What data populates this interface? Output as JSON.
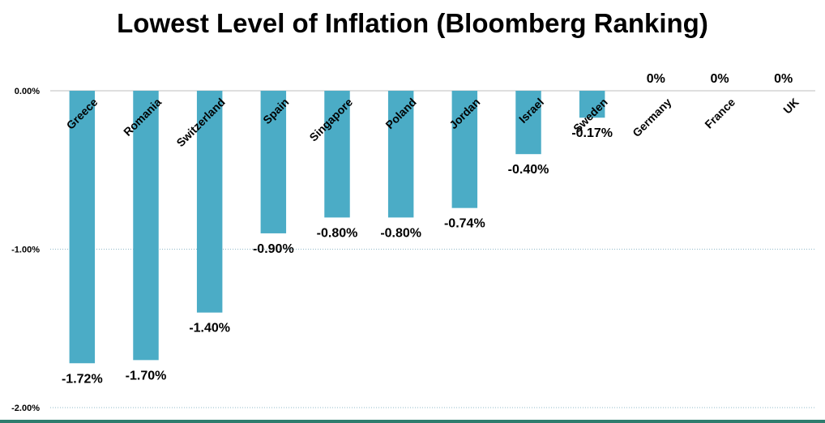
{
  "chart_data": {
    "type": "bar",
    "title": "Lowest Level of Inflation (Bloomberg Ranking)",
    "categories": [
      "Greece",
      "Romania",
      "Switzerland",
      "Spain",
      "Singapore",
      "Poland",
      "Jordan",
      "Israel",
      "Sweden",
      "Germany",
      "France",
      "UK"
    ],
    "values": [
      -1.72,
      -1.7,
      -1.4,
      -0.9,
      -0.8,
      -0.8,
      -0.74,
      -0.4,
      -0.17,
      0,
      0,
      0
    ],
    "data_labels": [
      "-1.72%",
      "-1.70%",
      "-1.40%",
      "-0.90%",
      "-0.80%",
      "-0.80%",
      "-0.74%",
      "-0.40%",
      "-0.17%",
      "0%",
      "0%",
      "0%"
    ],
    "y_ticks": [
      0,
      -1,
      -2
    ],
    "y_tick_labels": [
      "0.00%",
      "-1.00%",
      "-2.00%"
    ],
    "ylim": [
      -2,
      0
    ],
    "xlabel": "",
    "ylabel": "",
    "grid": true,
    "bar_color": "#4bacc6"
  }
}
